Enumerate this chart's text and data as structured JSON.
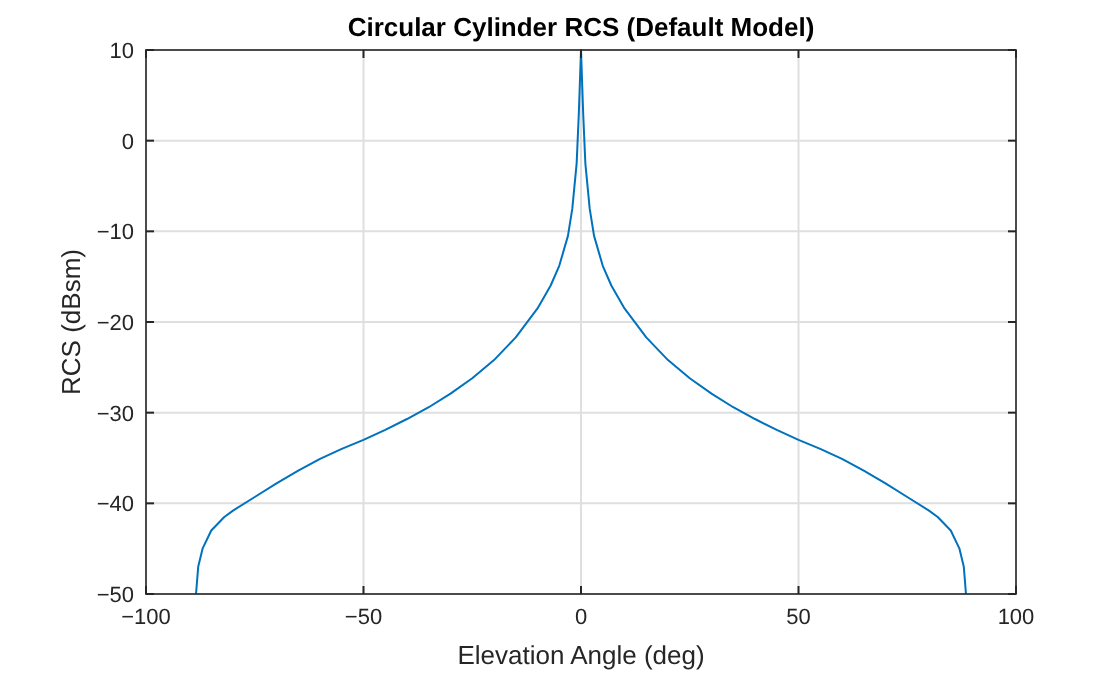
{
  "chart_data": {
    "type": "line",
    "title": "Circular Cylinder RCS (Default Model)",
    "xlabel": "Elevation Angle (deg)",
    "ylabel": "RCS (dBsm)",
    "xlim": [
      -100,
      100
    ],
    "ylim": [
      -50,
      10
    ],
    "xticks": [
      -100,
      -50,
      0,
      50,
      100
    ],
    "yticks": [
      -50,
      -40,
      -30,
      -20,
      -10,
      0,
      10
    ],
    "grid": true,
    "series": [
      {
        "color": "#0072bd",
        "x": [
          -88.5,
          -88,
          -87,
          -85,
          -82,
          -80,
          -75,
          -70,
          -65,
          -60,
          -55,
          -50,
          -45,
          -40,
          -35,
          -30,
          -25,
          -20,
          -15,
          -10,
          -7,
          -5,
          -3,
          -2,
          -1,
          -0.5,
          0,
          0.5,
          1,
          2,
          3,
          5,
          7,
          10,
          15,
          20,
          25,
          30,
          35,
          40,
          45,
          50,
          55,
          60,
          65,
          70,
          75,
          80,
          82,
          85,
          87,
          88,
          88.5
        ],
        "values": [
          -50,
          -47,
          -45,
          -43,
          -41.5,
          -40.8,
          -39.3,
          -37.8,
          -36.4,
          -35.1,
          -34,
          -33,
          -31.9,
          -30.7,
          -29.4,
          -27.9,
          -26.2,
          -24.2,
          -21.7,
          -18.5,
          -16,
          -13.8,
          -10.5,
          -7.5,
          -2.5,
          3,
          10,
          3,
          -2.5,
          -7.5,
          -10.5,
          -13.8,
          -16,
          -18.5,
          -21.7,
          -24.2,
          -26.2,
          -27.9,
          -29.4,
          -30.7,
          -31.9,
          -33,
          -34,
          -35.1,
          -36.4,
          -37.8,
          -39.3,
          -40.8,
          -41.5,
          -43,
          -45,
          -47,
          -50
        ]
      }
    ]
  }
}
